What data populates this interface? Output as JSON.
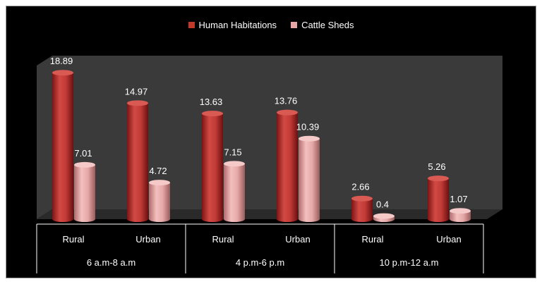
{
  "chart_data": {
    "type": "bar",
    "title": "",
    "xlabel": "",
    "ylabel": "",
    "ylim": [
      0,
      20
    ],
    "grid": false,
    "legend_position": "top-center",
    "groups": [
      {
        "label": "6 a.m-8 a.m",
        "categories": [
          "Rural",
          "Urban"
        ]
      },
      {
        "label": "4 p.m-6 p.m",
        "categories": [
          "Rural",
          "Urban"
        ]
      },
      {
        "label": "10 p.m-12 a.m",
        "categories": [
          "Rural",
          "Urban"
        ]
      }
    ],
    "categories": [
      "Rural",
      "Urban",
      "Rural",
      "Urban",
      "Rural",
      "Urban"
    ],
    "series": [
      {
        "name": "Human Habitations",
        "color": "#c0392b",
        "values": [
          18.89,
          14.97,
          13.63,
          13.76,
          2.66,
          5.26
        ]
      },
      {
        "name": "Cattle Sheds",
        "color": "#e8a6a6",
        "values": [
          7.01,
          4.72,
          7.15,
          10.39,
          0.4,
          1.07
        ]
      }
    ],
    "data_labels": [
      [
        "18.89",
        "14.97",
        "13.63",
        "13.76",
        "2.66",
        "5.26"
      ],
      [
        "7.01",
        "4.72",
        "7.15",
        "10.39",
        "0.4",
        "1.07"
      ]
    ]
  },
  "colors": {
    "background": "#000000",
    "wall": "#3a3a3a",
    "floor": "#2a2a2a",
    "text": "#ffffff",
    "axis_line": "#ffffff"
  }
}
